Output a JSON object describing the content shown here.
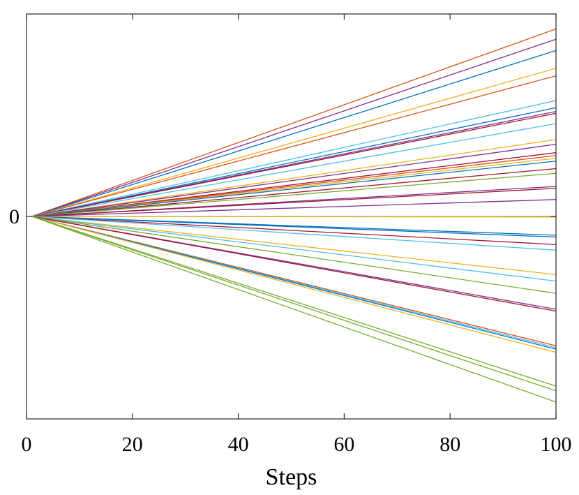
{
  "chart_data": {
    "type": "line",
    "title": "",
    "xlabel": "Steps",
    "ylabel": "",
    "xlim": [
      0,
      100
    ],
    "ylim": [
      -1.08,
      1.08
    ],
    "x_ticks": [
      0,
      20,
      40,
      60,
      80,
      100
    ],
    "x_tick_labels": [
      "0",
      "20",
      "40",
      "60",
      "80",
      "100"
    ],
    "y_ticks": [
      0
    ],
    "y_tick_labels": [
      "0"
    ],
    "grid": false,
    "legend": "none",
    "x_start": 1,
    "x_end": 100,
    "series": [
      {
        "color": "#D95319",
        "end": 1.0
      },
      {
        "color": "#7E2F8E",
        "end": 0.945
      },
      {
        "color": "#0072BD",
        "end": 0.885
      },
      {
        "color": "#EDB120",
        "end": 0.79
      },
      {
        "color": "#D95319",
        "end": 0.75
      },
      {
        "color": "#4DBEEE",
        "end": 0.618
      },
      {
        "color": "#0072BD",
        "end": 0.58
      },
      {
        "color": "#7E2F8E",
        "end": 0.56
      },
      {
        "color": "#A2142F",
        "end": 0.55
      },
      {
        "color": "#4DBEEE",
        "end": 0.495
      },
      {
        "color": "#EDB120",
        "end": 0.41
      },
      {
        "color": "#7E2F8E",
        "end": 0.385
      },
      {
        "color": "#A2142F",
        "end": 0.34
      },
      {
        "color": "#D95319",
        "end": 0.325
      },
      {
        "color": "#EDB120",
        "end": 0.31
      },
      {
        "color": "#0072BD",
        "end": 0.295
      },
      {
        "color": "#A2142F",
        "end": 0.255
      },
      {
        "color": "#77AC30",
        "end": 0.23
      },
      {
        "color": "#7E2F8E",
        "end": 0.16
      },
      {
        "color": "#A2142F",
        "end": 0.15
      },
      {
        "color": "#7E2F8E",
        "end": 0.09
      },
      {
        "color": "#77AC30",
        "end": 0.0
      },
      {
        "color": "#EDB120",
        "end": -0.003
      },
      {
        "color": "#0072BD",
        "end": -0.1
      },
      {
        "color": "#0072BD",
        "end": -0.11
      },
      {
        "color": "#A2142F",
        "end": -0.15
      },
      {
        "color": "#4DBEEE",
        "end": -0.18
      },
      {
        "color": "#EDB120",
        "end": -0.31
      },
      {
        "color": "#4DBEEE",
        "end": -0.345
      },
      {
        "color": "#77AC30",
        "end": -0.41
      },
      {
        "color": "#7E2F8E",
        "end": -0.495
      },
      {
        "color": "#A2142F",
        "end": -0.505
      },
      {
        "color": "#D95319",
        "end": -0.69
      },
      {
        "color": "#4DBEEE",
        "end": -0.7
      },
      {
        "color": "#0072BD",
        "end": -0.708
      },
      {
        "color": "#EDB120",
        "end": -0.725
      },
      {
        "color": "#77AC30",
        "end": -0.905
      },
      {
        "color": "#77AC30",
        "end": -0.93
      },
      {
        "color": "#77AC30",
        "end": -0.99
      }
    ]
  }
}
